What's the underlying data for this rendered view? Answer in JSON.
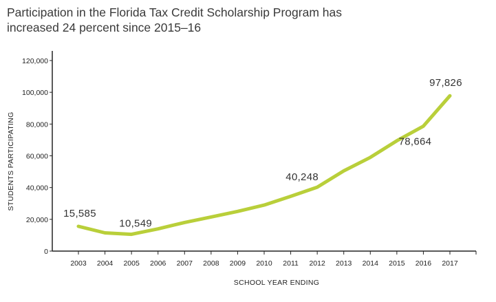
{
  "title": {
    "line1": "Participation in the Florida Tax Credit Scholarship Program has",
    "line2": "increased 24 percent since 2015–16"
  },
  "colors": {
    "line": "#b9cf3a",
    "axis": "#222222",
    "grid": "#bbbbbb",
    "text": "#333333"
  },
  "chart_data": {
    "type": "line",
    "title": "Participation in the Florida Tax Credit Scholarship Program has increased 24 percent since 2015–16",
    "xlabel": "SCHOOL YEAR ENDING",
    "ylabel": "STUDENTS PARTICIPATING",
    "ylim": [
      0,
      120000
    ],
    "yticks": [
      0,
      20000,
      40000,
      60000,
      80000,
      100000,
      120000
    ],
    "ytick_labels": [
      "0",
      "20,000",
      "40,000",
      "60,000",
      "80,000",
      "100,000",
      "120,000"
    ],
    "grid": false,
    "categories": [
      "2003",
      "2004",
      "2005",
      "2006",
      "2007",
      "2008",
      "2009",
      "2010",
      "2011",
      "2012",
      "2013",
      "2014",
      "2015",
      "2016",
      "2017"
    ],
    "series": [
      {
        "values": [
          15585,
          11500,
          10549,
          14000,
          18000,
          21500,
          25000,
          29000,
          34500,
          40248,
          50500,
          59000,
          69500,
          78664,
          97826
        ]
      }
    ],
    "annotations": [
      {
        "index": 0,
        "text": "15,585"
      },
      {
        "index": 2,
        "text": "10,549"
      },
      {
        "index": 9,
        "text": "40,248"
      },
      {
        "index": 13,
        "text": "78,664"
      },
      {
        "index": 14,
        "text": "97,826"
      }
    ]
  }
}
